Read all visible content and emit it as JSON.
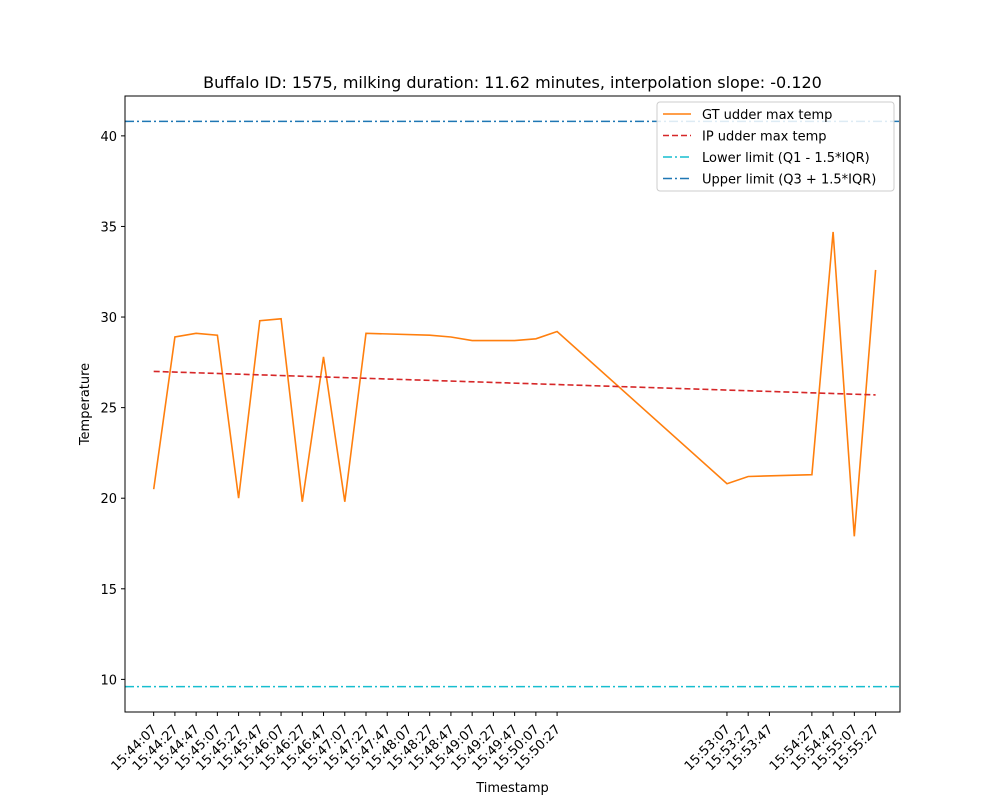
{
  "chart_data": {
    "type": "line",
    "title": "Buffalo ID: 1575, milking duration: 11.62 minutes, interpolation slope: -0.120",
    "xlabel": "Timestamp",
    "ylabel": "Temperature",
    "ylim": [
      8.2,
      42.2
    ],
    "yticks": [
      10,
      15,
      20,
      25,
      30,
      35,
      40
    ],
    "x_tick_labels": [
      "15:44:07",
      "15:44:27",
      "15:44:47",
      "15:45:07",
      "15:45:27",
      "15:45:47",
      "15:46:07",
      "15:46:27",
      "15:46:47",
      "15:47:07",
      "15:47:27",
      "15:47:47",
      "15:48:07",
      "15:48:27",
      "15:48:47",
      "15:49:07",
      "15:49:27",
      "15:49:47",
      "15:50:07",
      "15:50:27",
      "15:53:07",
      "15:53:27",
      "15:53:47",
      "15:54:27",
      "15:54:47",
      "15:55:07",
      "15:55:27"
    ],
    "xlim": [
      "15:43:40",
      "15:55:50"
    ],
    "legend_position": "upper right",
    "series": [
      {
        "name": "GT udder max temp",
        "color": "#ff7f0e",
        "style": "solid",
        "points": [
          {
            "x": "15:44:07",
            "y": 20.5
          },
          {
            "x": "15:44:27",
            "y": 28.9
          },
          {
            "x": "15:44:47",
            "y": 29.1
          },
          {
            "x": "15:45:07",
            "y": 29.0
          },
          {
            "x": "15:45:27",
            "y": 20.0
          },
          {
            "x": "15:45:47",
            "y": 29.8
          },
          {
            "x": "15:46:07",
            "y": 29.9
          },
          {
            "x": "15:46:27",
            "y": 19.8
          },
          {
            "x": "15:46:47",
            "y": 27.8
          },
          {
            "x": "15:47:07",
            "y": 19.8
          },
          {
            "x": "15:47:27",
            "y": 29.1
          },
          {
            "x": "15:48:27",
            "y": 29.0
          },
          {
            "x": "15:48:47",
            "y": 28.9
          },
          {
            "x": "15:49:07",
            "y": 28.7
          },
          {
            "x": "15:49:27",
            "y": 28.7
          },
          {
            "x": "15:49:47",
            "y": 28.7
          },
          {
            "x": "15:50:07",
            "y": 28.8
          },
          {
            "x": "15:50:27",
            "y": 29.2
          },
          {
            "x": "15:53:07",
            "y": 20.8
          },
          {
            "x": "15:53:27",
            "y": 21.2
          },
          {
            "x": "15:54:27",
            "y": 21.3
          },
          {
            "x": "15:54:47",
            "y": 34.7
          },
          {
            "x": "15:55:07",
            "y": 17.9
          },
          {
            "x": "15:55:27",
            "y": 32.6
          }
        ]
      },
      {
        "name": "IP udder max temp",
        "color": "#d62728",
        "style": "dashed",
        "points": [
          {
            "x": "15:44:07",
            "y": 27.0
          },
          {
            "x": "15:55:27",
            "y": 25.7
          }
        ]
      },
      {
        "name": "Lower limit (Q1 - 1.5*IQR)",
        "color": "#17becf",
        "style": "dashdot",
        "hline": 9.6
      },
      {
        "name": "Upper limit (Q3 + 1.5*IQR)",
        "color": "#1f77b4",
        "style": "dashdot",
        "hline": 40.8
      }
    ]
  }
}
